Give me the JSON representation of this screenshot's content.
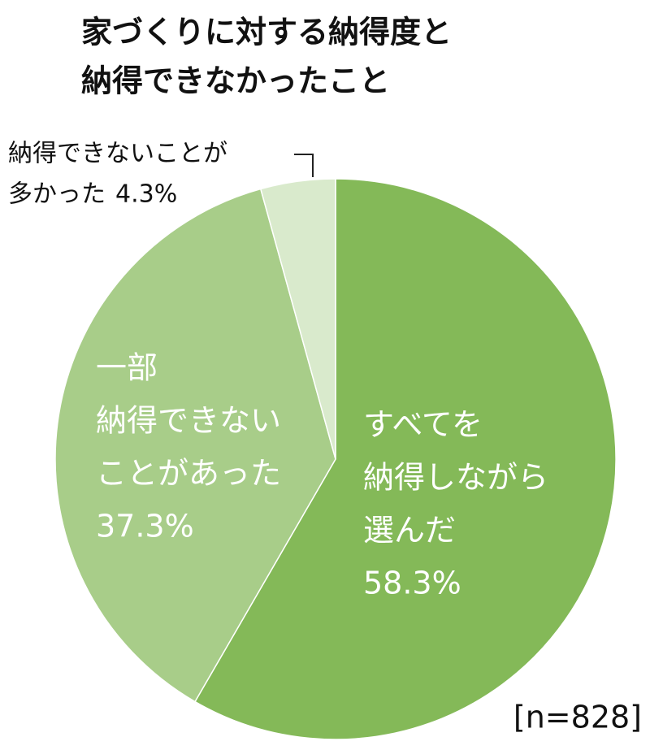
{
  "chart_data": {
    "type": "pie",
    "title": [
      "家づくりに対する納得度と",
      "納得できなかったこと"
    ],
    "categories": [
      [
        "すべてを",
        "納得しながら",
        "選んだ"
      ],
      [
        "一部",
        "納得できない",
        "ことがあった"
      ],
      [
        "納得できないことが",
        "多かった"
      ]
    ],
    "values": [
      58.3,
      37.3,
      4.3
    ],
    "value_labels": [
      "58.3%",
      "37.3%",
      "4.3%"
    ],
    "colors": [
      "#84b958",
      "#a8cd89",
      "#d9eacc"
    ],
    "note": "[n=828]"
  }
}
